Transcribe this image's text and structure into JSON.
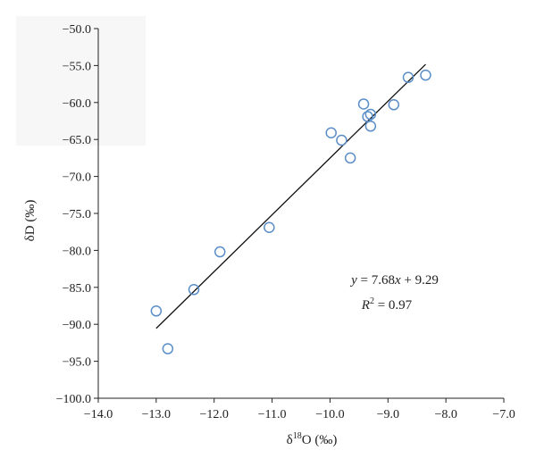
{
  "chart_data": {
    "type": "scatter",
    "xlabel": "δ18O (‰)",
    "ylabel": "δD (‰)",
    "xlim": [
      -14.0,
      -7.0
    ],
    "ylim": [
      -100.0,
      -50.0
    ],
    "x_ticks": [
      "−14.0",
      "−13.0",
      "−12.0",
      "−11.0",
      "−10.0",
      "−9.0",
      "−8.0",
      "−7.0"
    ],
    "y_ticks": [
      "−100.0",
      "−95.0",
      "−90.0",
      "−85.0",
      "−80.0",
      "−75.0",
      "−70.0",
      "−65.0",
      "−60.0",
      "−55.0",
      "−50.0"
    ],
    "grid": false,
    "points": [
      {
        "x": -13.0,
        "y": -88.2
      },
      {
        "x": -12.8,
        "y": -93.3
      },
      {
        "x": -12.35,
        "y": -85.3
      },
      {
        "x": -11.9,
        "y": -80.2
      },
      {
        "x": -11.05,
        "y": -76.9
      },
      {
        "x": -9.98,
        "y": -64.1
      },
      {
        "x": -9.8,
        "y": -65.1
      },
      {
        "x": -9.65,
        "y": -67.5
      },
      {
        "x": -9.42,
        "y": -60.2
      },
      {
        "x": -9.35,
        "y": -61.9
      },
      {
        "x": -9.3,
        "y": -61.6
      },
      {
        "x": -9.3,
        "y": -63.2
      },
      {
        "x": -8.9,
        "y": -60.3
      },
      {
        "x": -8.65,
        "y": -56.6
      },
      {
        "x": -8.35,
        "y": -56.3
      }
    ],
    "trendline": {
      "slope": 7.68,
      "intercept": 9.29,
      "x_range": [
        -13.0,
        -8.35
      ]
    },
    "equation": "y = 7.68x + 9.29",
    "r_squared": "R2 = 0.97",
    "colors": {
      "marker": "#5b8ec7",
      "line": "#111111",
      "axis": "#222222"
    }
  }
}
